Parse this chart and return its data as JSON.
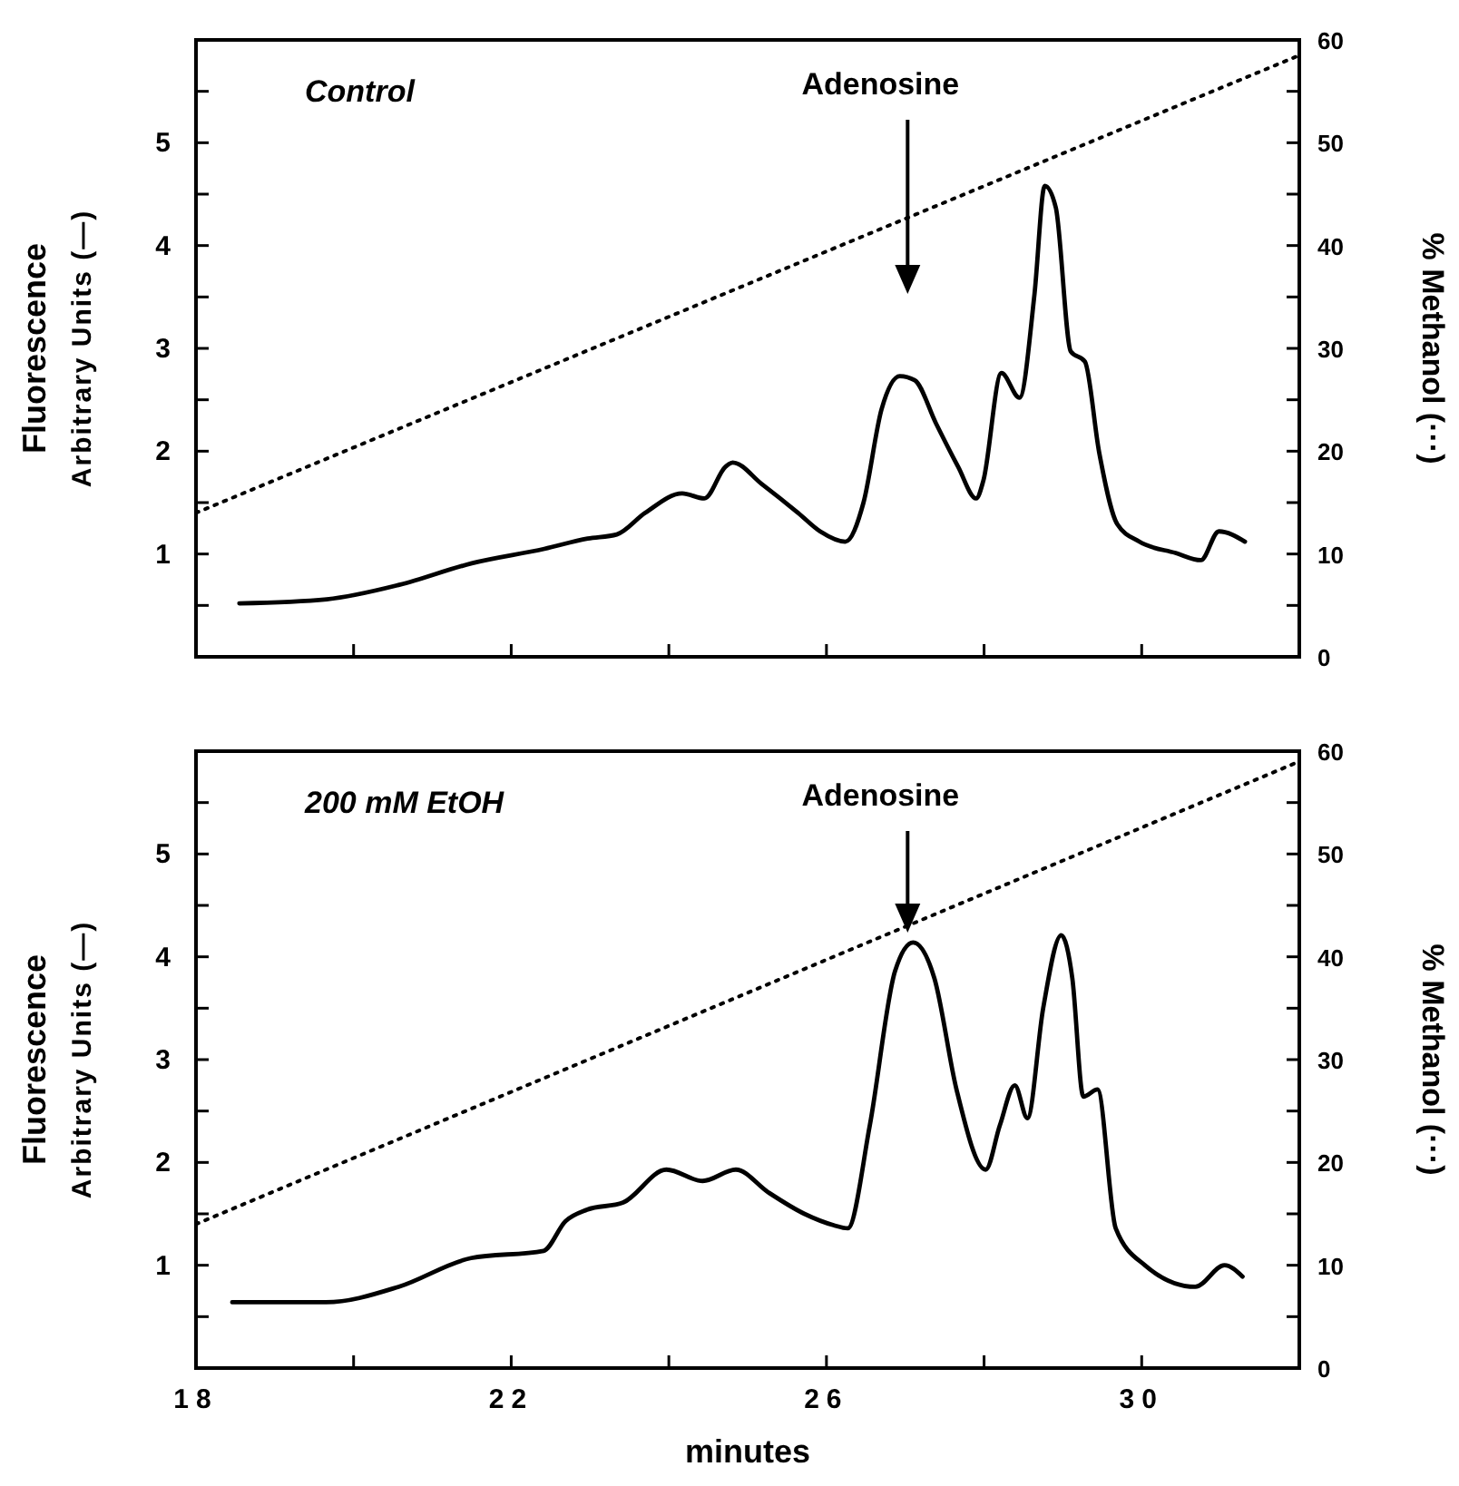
{
  "chart_data": [
    {
      "type": "line",
      "title": "Control",
      "ylabel": "Fluorescence\nArbitrary Units (—)",
      "y2label": "% Methanol (···)",
      "tick_labels": "y",
      "xlim": [
        18,
        32
      ],
      "xticks": [
        18,
        {
          "value": 20,
          "label": null
        },
        22,
        {
          "value": 24,
          "label": null
        },
        26,
        {
          "value": 28,
          "label": null
        },
        30
      ],
      "ylim": [
        0,
        6
      ],
      "yticks": [
        {
          "value": 0.5,
          "label": null
        },
        1,
        {
          "value": 1.5,
          "label": null
        },
        2,
        {
          "value": 2.5,
          "label": null
        },
        3,
        {
          "value": 3.5,
          "label": null
        },
        4,
        {
          "value": 4.5,
          "label": null
        },
        5,
        {
          "value": 5.5,
          "label": null
        }
      ],
      "y2lim": [
        0,
        60
      ],
      "y2ticks": [
        0,
        {
          "value": 5,
          "label": null
        },
        10,
        {
          "value": 15,
          "label": null
        },
        20,
        {
          "value": 25,
          "label": null
        },
        30,
        {
          "value": 35,
          "label": null
        },
        40,
        {
          "value": 45,
          "label": null
        },
        50,
        {
          "value": 55,
          "label": null
        },
        60
      ],
      "annotations": [
        "Adenosine"
      ],
      "series": [
        {
          "color": "#000000",
          "line_style": "solid",
          "x": [
            18.55,
            19.66,
            20.58,
            21.5,
            22.42,
            22.97,
            23.34,
            23.7,
            24.17,
            24.45,
            24.72,
            24.81,
            25.18,
            25.64,
            25.92,
            26.24,
            26.47,
            26.7,
            26.93,
            27.12,
            27.39,
            27.67,
            27.9,
            27.99,
            28.22,
            28.45,
            28.64,
            28.77,
            28.91,
            29.1,
            29.28,
            29.46,
            29.69,
            29.97,
            30.43,
            30.75,
            30.98,
            31.31
          ],
          "values": [
            0.52,
            0.56,
            0.7,
            0.91,
            1.05,
            1.15,
            1.19,
            1.4,
            1.59,
            1.54,
            1.85,
            1.89,
            1.68,
            1.4,
            1.22,
            1.12,
            1.5,
            2.41,
            2.73,
            2.69,
            2.27,
            1.85,
            1.54,
            1.71,
            2.76,
            2.52,
            3.53,
            4.58,
            4.37,
            2.97,
            2.87,
            1.99,
            1.29,
            1.12,
            1.01,
            0.94,
            1.22,
            1.12
          ]
        },
        {
          "color": "#000000",
          "line_style": "dotted",
          "axis": "y2",
          "x": [
            18,
            32
          ],
          "values": [
            14,
            58.5
          ]
        }
      ]
    },
    {
      "type": "line",
      "title": "200 mM EtOH",
      "xlabel": "minutes",
      "ylabel": "Fluorescence\nArbitrary Units (—)",
      "y2label": "% Methanol (···)",
      "xlim": [
        18,
        32
      ],
      "xticks": [
        18,
        {
          "value": 20,
          "label": null
        },
        22,
        {
          "value": 24,
          "label": null
        },
        26,
        {
          "value": 28,
          "label": null
        },
        30
      ],
      "ylim": [
        0,
        6
      ],
      "yticks": [
        {
          "value": 0.5,
          "label": null
        },
        1,
        {
          "value": 1.5,
          "label": null
        },
        2,
        {
          "value": 2.5,
          "label": null
        },
        3,
        {
          "value": 3.5,
          "label": null
        },
        4,
        {
          "value": 4.5,
          "label": null
        },
        5,
        {
          "value": 5.5,
          "label": null
        }
      ],
      "y2lim": [
        0,
        60
      ],
      "y2ticks": [
        0,
        {
          "value": 5,
          "label": null
        },
        10,
        {
          "value": 15,
          "label": null
        },
        20,
        {
          "value": 25,
          "label": null
        },
        30,
        {
          "value": 35,
          "label": null
        },
        40,
        {
          "value": 45,
          "label": null
        },
        50,
        {
          "value": 55,
          "label": null
        },
        60
      ],
      "annotations": [
        "Adenosine"
      ],
      "series": [
        {
          "color": "#000000",
          "line_style": "solid",
          "x": [
            18.46,
            19.65,
            20.57,
            21.49,
            22.41,
            22.69,
            22.96,
            23.42,
            23.97,
            24.43,
            24.85,
            25.26,
            25.72,
            26.09,
            26.27,
            26.55,
            26.87,
            27.1,
            27.37,
            27.65,
            28.02,
            28.2,
            28.39,
            28.55,
            28.75,
            28.98,
            29.12,
            29.26,
            29.44,
            29.67,
            30.04,
            30.68,
            31.05,
            31.28
          ],
          "values": [
            0.64,
            0.64,
            0.79,
            1.07,
            1.14,
            1.43,
            1.54,
            1.61,
            1.93,
            1.82,
            1.93,
            1.71,
            1.5,
            1.39,
            1.36,
            2.36,
            3.86,
            4.14,
            3.79,
            2.71,
            1.93,
            2.36,
            2.75,
            2.43,
            3.5,
            4.21,
            3.79,
            2.64,
            2.71,
            1.36,
            1.0,
            0.79,
            1.0,
            0.89
          ]
        },
        {
          "color": "#000000",
          "line_style": "dotted",
          "axis": "y2",
          "x": [
            18,
            32
          ],
          "values": [
            14,
            59
          ]
        }
      ]
    }
  ]
}
